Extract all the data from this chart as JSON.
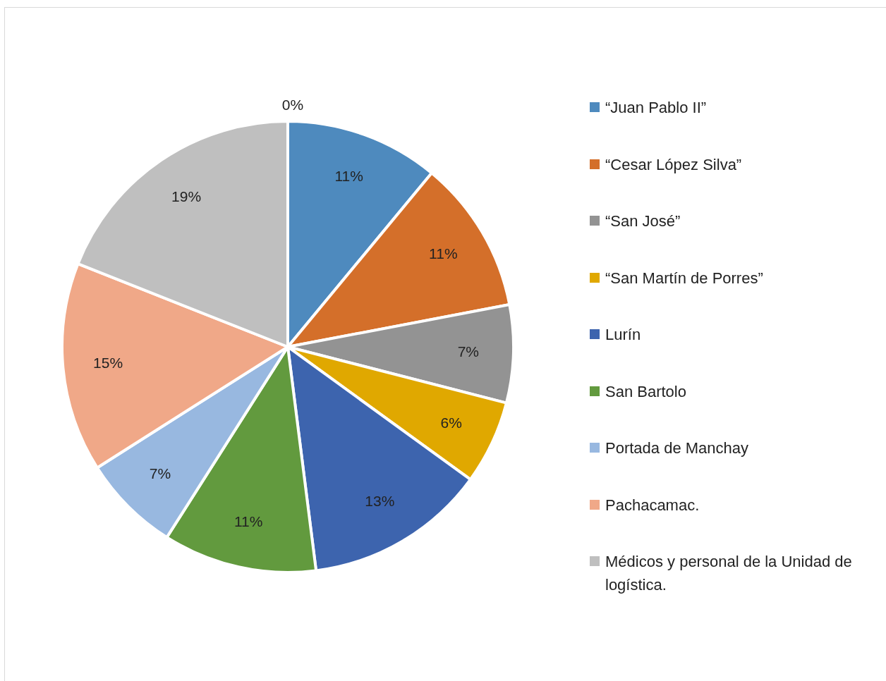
{
  "chart_data": {
    "type": "pie",
    "categories": [
      "“Juan Pablo II”",
      "“Cesar López Silva”",
      "“San José”",
      "“San Martín de Porres”",
      "Lurín",
      "San Bartolo",
      "Portada de Manchay",
      "Pachacamac.",
      "Médicos y personal de la Unidad de logística."
    ],
    "values": [
      11,
      11,
      7,
      6,
      13,
      11,
      7,
      15,
      19
    ],
    "colors": [
      "#4e8abe",
      "#d46f2a",
      "#939393",
      "#e0a800",
      "#3d64ae",
      "#629a3e",
      "#98b8e0",
      "#f0a888",
      "#bfbfbf"
    ],
    "value_labels": [
      "11%",
      "11%",
      "7%",
      "6%",
      "13%",
      "11%",
      "7%",
      "15%",
      "19%"
    ],
    "annotations": [
      "0%"
    ],
    "legend": "right"
  }
}
